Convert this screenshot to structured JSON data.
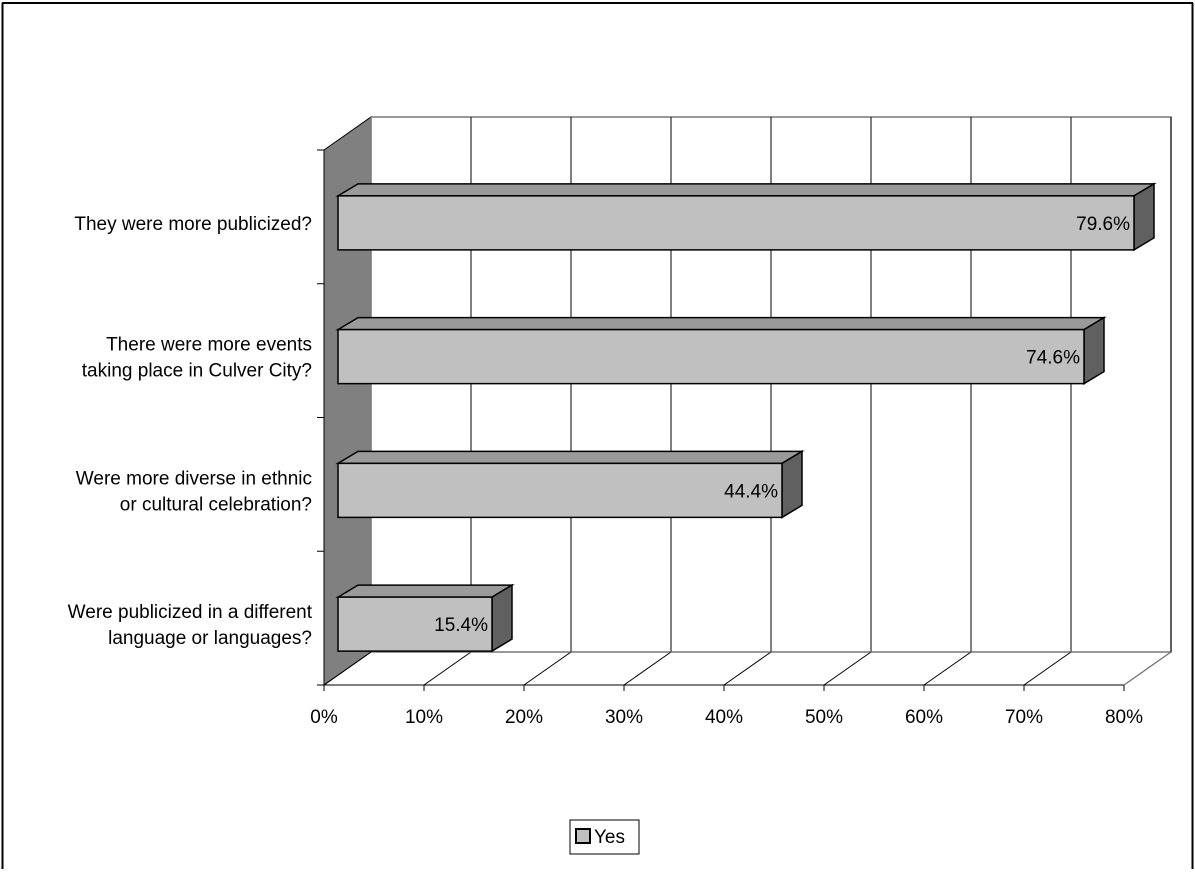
{
  "chart_data": {
    "type": "bar",
    "orientation": "horizontal",
    "style": "3d",
    "categories": [
      [
        "They were more publicized?"
      ],
      [
        "There were more events",
        "taking place in Culver City?"
      ],
      [
        "Were more diverse in ethnic",
        "or cultural celebration?"
      ],
      [
        "Were publicized in a different",
        "language or languages?"
      ]
    ],
    "series": [
      {
        "name": "Yes",
        "values": [
          79.6,
          74.6,
          44.4,
          15.4
        ],
        "labels": [
          "79.6%",
          "74.6%",
          "44.4%",
          "15.4%"
        ]
      }
    ],
    "xlim": [
      0,
      80
    ],
    "xticks": [
      "0%",
      "10%",
      "20%",
      "30%",
      "40%",
      "50%",
      "60%",
      "70%",
      "80%"
    ],
    "grid": true,
    "legend_position": "bottom"
  },
  "colors": {
    "bar_front": "#c0c0c0",
    "bar_top": "#9a9a9a",
    "bar_side": "#606060",
    "side_wall": "#808080",
    "grid": "#000000"
  }
}
